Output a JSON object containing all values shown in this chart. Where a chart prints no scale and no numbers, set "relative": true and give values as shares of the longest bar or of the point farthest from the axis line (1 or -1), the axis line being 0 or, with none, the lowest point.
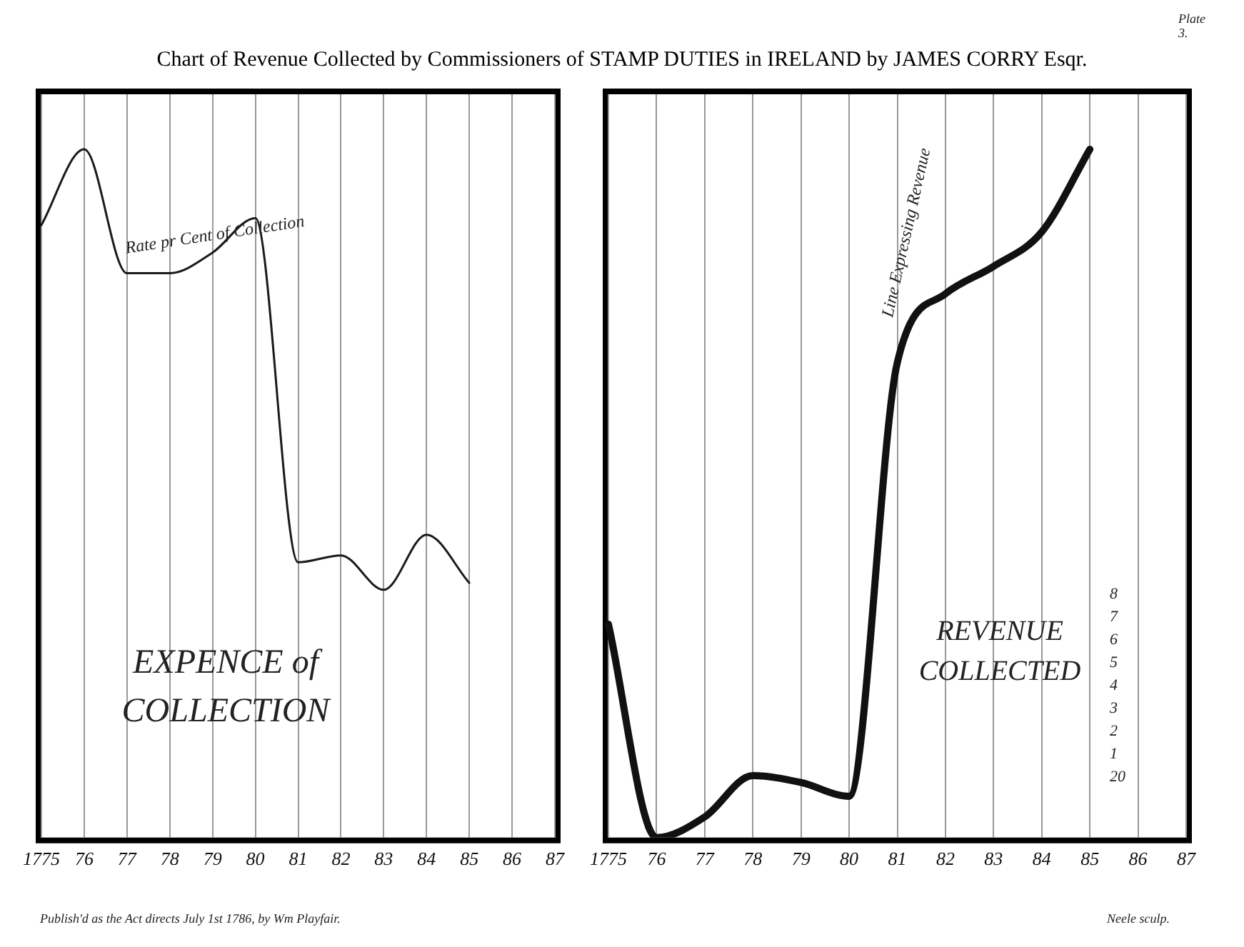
{
  "chart_data": [
    {
      "type": "line",
      "title": "Chart of Revenue Collected by Commissioners of STAMP DUTIES in IRELAND by JAMES CORRY Esqr.",
      "relative": true,
      "grid": "x",
      "categories": [
        "1775",
        "76",
        "77",
        "78",
        "79",
        "80",
        "81",
        "82",
        "83",
        "84",
        "85",
        "86",
        "87"
      ],
      "series": [
        {
          "name": "Rate pr Cent of Collection",
          "color": "#1a1a1a",
          "values": [
            0.89,
            1.0,
            0.82,
            0.82,
            0.85,
            0.9,
            0.4,
            0.41,
            0.36,
            0.44,
            0.37,
            null,
            null
          ]
        }
      ],
      "annotations": [
        "EXPENCE of COLLECTION",
        "Publish'd as the Act directs July 1st 1786, by Wm Playfair."
      ]
    },
    {
      "type": "line",
      "relative": true,
      "grid": "x",
      "categories": [
        "1775",
        "76",
        "77",
        "78",
        "79",
        "80",
        "81",
        "82",
        "83",
        "84",
        "85",
        "86",
        "87"
      ],
      "series": [
        {
          "name": "Line Expressing Revenue",
          "color": "#111111",
          "values": [
            0.31,
            0,
            0.03,
            0.09,
            0.08,
            0.06,
            0.69,
            0.79,
            0.83,
            0.88,
            1.0,
            null,
            null
          ]
        }
      ],
      "annotations": [
        "REVENUE COLLECTED",
        "Plate 3.",
        "Neele sculp.",
        "8",
        "7",
        "6",
        "5",
        "4",
        "3",
        "2",
        "1",
        "20"
      ]
    }
  ]
}
